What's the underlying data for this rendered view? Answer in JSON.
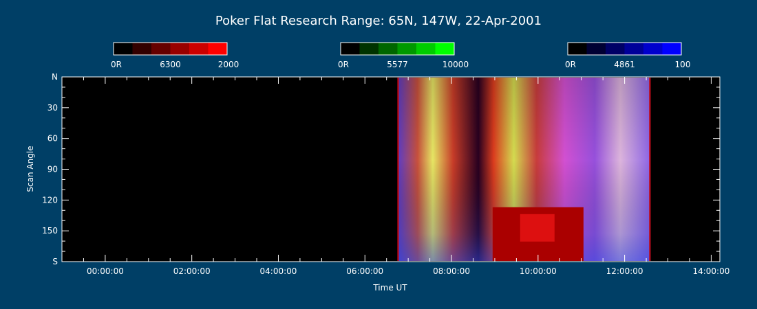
{
  "chart_data": {
    "type": "heatmap",
    "title": "Poker Flat Research Range: 65N, 147W, 22-Apr-2001",
    "xlabel": "Time UT",
    "ylabel": "Scan Angle",
    "x_ticks": [
      "00:00:00",
      "02:00:00",
      "04:00:00",
      "06:00:00",
      "08:00:00",
      "10:00:00",
      "12:00:00",
      "14:00:00"
    ],
    "x_tick_hours": [
      0,
      2,
      4,
      6,
      8,
      10,
      12,
      14
    ],
    "xlim_hours": [
      -1.0,
      14.2
    ],
    "y_ticks": [
      "N",
      "30",
      "60",
      "90",
      "120",
      "150",
      "S"
    ],
    "y_tick_values": [
      0,
      30,
      60,
      90,
      120,
      150,
      180
    ],
    "ylim": [
      0,
      180
    ],
    "data_interval_hours": [
      6.75,
      12.6
    ],
    "highlight_box": {
      "x_hours": [
        8.95,
        11.05
      ],
      "y_scan": [
        127,
        180
      ],
      "color": "#aa0000"
    },
    "colorbars": [
      {
        "name": "6300",
        "min_label": "0R",
        "max_label": "2000",
        "colors": [
          "#000000",
          "#330000",
          "#660000",
          "#990000",
          "#cc0000",
          "#ff0000"
        ]
      },
      {
        "name": "5577",
        "min_label": "0R",
        "max_label": "10000",
        "colors": [
          "#000000",
          "#003300",
          "#006600",
          "#009900",
          "#00cc00",
          "#00ff00"
        ]
      },
      {
        "name": "4861",
        "min_label": "0R",
        "max_label": "100",
        "colors": [
          "#000000",
          "#000033",
          "#000066",
          "#000099",
          "#0000cc",
          "#0000ff"
        ]
      }
    ],
    "grid": false,
    "colors": {
      "background": "#003f66",
      "axes": "#ffffff",
      "plot_bg": "#000000"
    }
  }
}
